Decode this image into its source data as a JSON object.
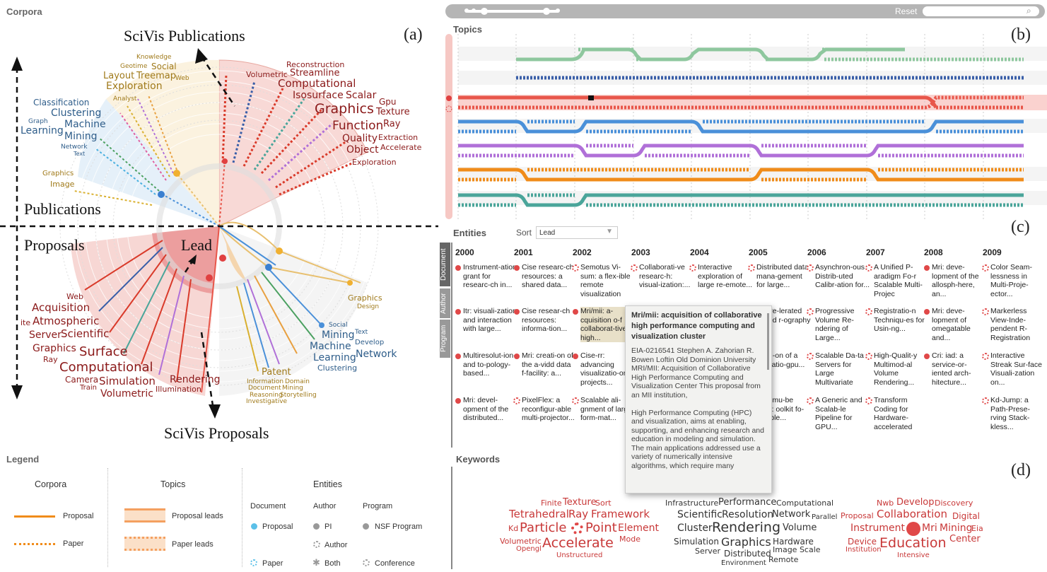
{
  "corpora": {
    "title": "Corpora",
    "letter": "(a)",
    "axis_labels": {
      "scivis_publications": "SciVis Publications",
      "publications": "Publications",
      "proposals": "Proposals",
      "scivis_proposals": "SciVis Proposals",
      "lead": "Lead"
    },
    "words_top_right": [
      "Reconstruction",
      "Volumetric",
      "Streamline",
      "Computational",
      "Isosurface",
      "Scalar",
      "Gpu",
      "Graphics",
      "Texture",
      "Ray",
      "Function",
      "Extraction",
      "Quality",
      "Object",
      "Accelerate",
      "Exploration"
    ],
    "words_top_left_gold": [
      "Knowledge",
      "Geotime",
      "Social",
      "Layout",
      "Treemap",
      "Web",
      "Exploration",
      "Analyst",
      "Graphics",
      "Image"
    ],
    "words_top_left_blue": [
      "Classification",
      "Clustering",
      "Graph",
      "Machine",
      "Learning",
      "Mining",
      "Network",
      "Text"
    ],
    "words_bottom_left": [
      "Web",
      "Acquisition",
      "ite",
      "Atmospheric",
      "Server",
      "Scientific",
      "Graphics",
      "Surface",
      "Ray",
      "Computational",
      "Camera",
      "Simulation",
      "Train",
      "Volumetric",
      "Rendering",
      "Illumination"
    ],
    "words_bottom_right_gold": [
      "Graphics",
      "Design",
      "Patent",
      "Information",
      "Domain",
      "Document",
      "Mining",
      "Reasoning",
      "Storytelling",
      "Investigative"
    ],
    "words_bottom_right_blue": [
      "Social",
      "Text",
      "Mining",
      "Develop",
      "Machine",
      "Network",
      "Learning",
      "Clustering"
    ]
  },
  "topics": {
    "title": "Topics",
    "letter": "(b)",
    "reset_label": "Reset",
    "search_placeholder": "",
    "colors": [
      "#8ec79e",
      "#3a5fa8",
      "#e8564a",
      "#4a90d9",
      "#b070d8",
      "#f08c1a",
      "#4aa59a"
    ]
  },
  "entities": {
    "title": "Entities",
    "letter": "(c)",
    "sort_label": "Sort",
    "sort_value": "Lead",
    "tabs": [
      "Document",
      "Author",
      "Program"
    ],
    "years": [
      "2000",
      "2001",
      "2002",
      "2003",
      "2004",
      "2005",
      "2006",
      "2007",
      "2008",
      "2009"
    ],
    "columns": [
      [
        {
          "t": "Instrument-ation grant for researc-ch in...",
          "k": "dot"
        },
        {
          "t": "Itr: visuali-zation and interaction with large...",
          "k": "dot"
        },
        {
          "t": "Multiresolut-ion- and to-pology-based...",
          "k": "dot"
        },
        {
          "t": "Mri: devel-opment of the distributed...",
          "k": "dot"
        }
      ],
      [
        {
          "t": "Cise researc-ch resources: a shared data...",
          "k": "dot"
        },
        {
          "t": "Cise resear-ch resources: informa-tion...",
          "k": "dot"
        },
        {
          "t": "Mri: creati-on of the a-vidd data f-facility: a...",
          "k": "dot"
        },
        {
          "t": "PixelFlex: a reconfigur-able multi-projector...",
          "k": "ring"
        }
      ],
      [
        {
          "t": "Semotus Vi-sum: a flex-ible remote visualization",
          "k": "ring"
        },
        {
          "t": "Mri/mii: a-cquisition o-f collaborat-tive high...",
          "k": "dot"
        },
        {
          "t": "Cise-rr: advancing visualizatio-on projects...",
          "k": "dot"
        },
        {
          "t": "Scalable ali-gnment of large-form-mat...",
          "k": "ring"
        }
      ],
      [
        {
          "t": "Collaborati-ve researc-h: visual-ization:...",
          "k": "ring"
        }
      ],
      [
        {
          "t": "Interactive exploration of large re-emote...",
          "k": "ring"
        }
      ],
      [
        {
          "t": "Distributed data mana-gement for large...",
          "k": "ring"
        },
        {
          "t": "dware-lerated ulated r-ography",
          "k": "none"
        },
        {
          "t": "acqu-on of a ualizatio-gpu...",
          "k": "none"
        },
        {
          "t": "nGL mu-be SDK: oolkit fo-calable...",
          "k": "none"
        }
      ],
      [
        {
          "t": "Asynchron-ous Distrib-uted Calibr-ation for...",
          "k": "ring"
        },
        {
          "t": "Progressive Volume Re-ndering of Large...",
          "k": "ring"
        },
        {
          "t": "Scalable Da-ta Servers for Large Multivariate",
          "k": "ring"
        },
        {
          "t": "A Generic and Scalab-le Pipeline for GPU...",
          "k": "ring"
        }
      ],
      [
        {
          "t": "A Unified P-aradigm Fo-r Scalable Multi-Projec",
          "k": "ring"
        },
        {
          "t": "Registratio-n Techniqu-es for Usin-ng...",
          "k": "ring"
        },
        {
          "t": "High-Qualit-y Multimod-al Volume Rendering...",
          "k": "ring"
        },
        {
          "t": "Transform Coding for Hardware-accelerated",
          "k": "ring"
        }
      ],
      [
        {
          "t": "Mri: deve-lopment of the allosph-here, an...",
          "k": "dot"
        },
        {
          "t": "Mri: deve-lopment of omegatable and...",
          "k": "dot"
        },
        {
          "t": "Cri: iad: a service-or-iented arch-hitecture...",
          "k": "dot"
        }
      ],
      [
        {
          "t": "Color Seam-lessness in Multi-Proje-ector...",
          "k": "ring"
        },
        {
          "t": "Markerless View-Inde-pendent R-Registration",
          "k": "ring"
        },
        {
          "t": "Interactive Streak Sur-face Visuali-zation on...",
          "k": "ring"
        },
        {
          "t": "Kd-Jump: a Path-Prese-rving Stack-kless...",
          "k": "ring"
        }
      ]
    ],
    "tooltip": {
      "title": "Mri/mii: acquisition of collaborative high performance computing and visualization cluster",
      "body": "EIA-0216541 Stephen A. Zahorian R. Bowen Loftin Old Dominion University MRI/MII: Acquisition of Collaborative High Performance Computing and Visualization Center This proposal from an MII institution,\n\nHigh Performance Computing (HPC) and visualization, aims at enabling, supporting, and enhancing research and education in modeling and simulation. The main applications addressed use a variety of numerically intensive algorithms, which require many"
    }
  },
  "keywords": {
    "title": "Keywords",
    "letter": "(d)",
    "group1": [
      "Finite",
      "Texture",
      "Sort",
      "Tetrahedral",
      "Ray",
      "Framework",
      "Kd",
      "Particle",
      "Point",
      "Element",
      "Volumetric",
      "Opengl",
      "Accelerate",
      "Mode",
      "Unstructured"
    ],
    "group2": [
      "Infrastructure",
      "Performance",
      "Computational",
      "Scientific",
      "Resolution",
      "Network",
      "Parallel",
      "Cluster",
      "Rendering",
      "Volume",
      "Simulation",
      "Graphics",
      "Hardware",
      "Server",
      "Distributed",
      "Image Scale",
      "Environment",
      "Remote"
    ],
    "group3": [
      "Nwb",
      "Develop",
      "Discovery",
      "Proposal",
      "Collaboration",
      "Digital",
      "Instrument",
      "Mri",
      "Mining",
      "Eia",
      "Device",
      "Education",
      "Center",
      "Institution",
      "Intensive"
    ]
  },
  "legend": {
    "title": "Legend",
    "corpora_header": "Corpora",
    "topics_header": "Topics",
    "entities_header": "Entities",
    "proposal": "Proposal",
    "paper": "Paper",
    "proposal_leads": "Proposal leads",
    "paper_leads": "Paper leads",
    "document": "Document",
    "author": "Author",
    "program": "Program",
    "doc_proposal": "Proposal",
    "doc_paper": "Paper",
    "pi": "PI",
    "author_item": "Author",
    "both": "Both",
    "nsf_program": "NSF Program",
    "conference": "Conference"
  }
}
